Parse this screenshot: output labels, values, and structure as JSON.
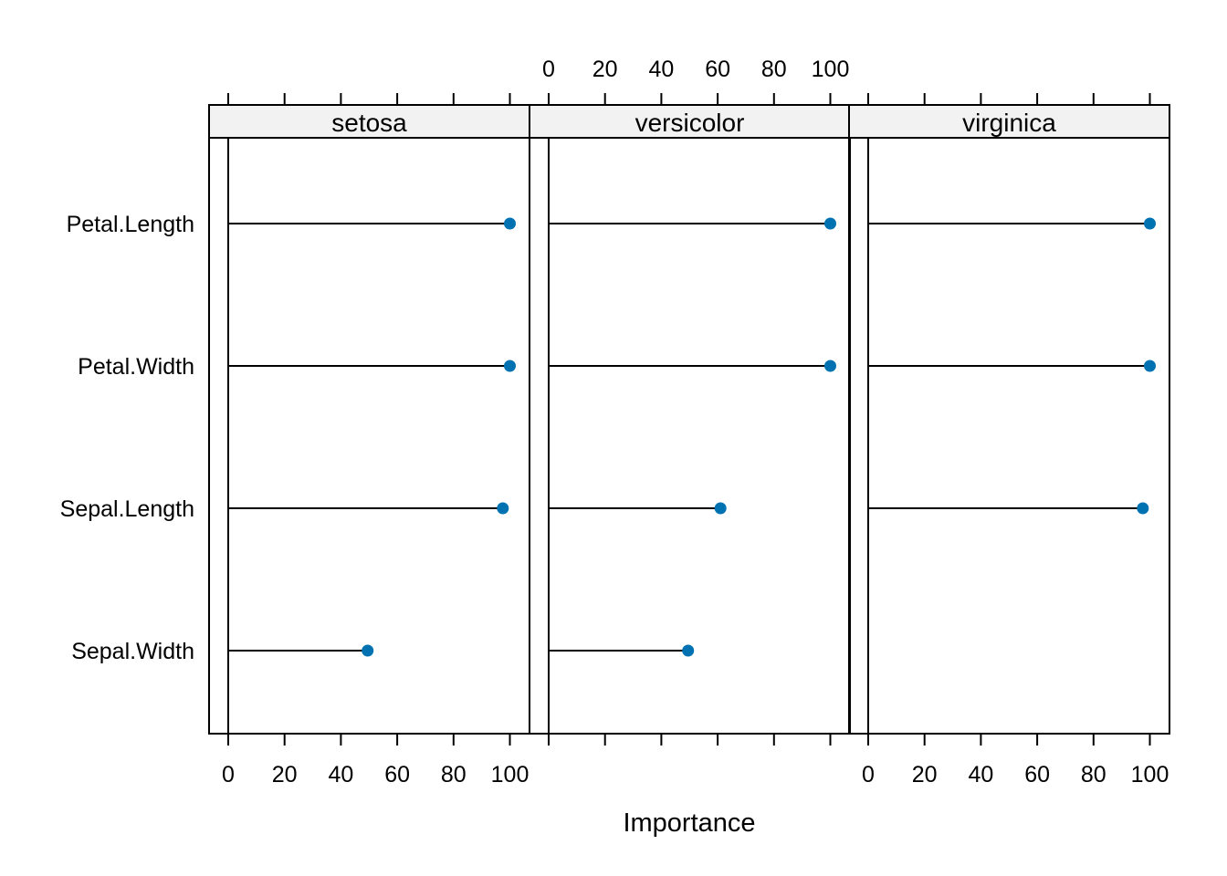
{
  "chart_data": {
    "type": "dot",
    "xlabel": "Importance",
    "ylabel": "",
    "xlim": [
      0,
      100
    ],
    "x_ticks": [
      0,
      20,
      40,
      60,
      80,
      100
    ],
    "grid": false,
    "categories": [
      "Petal.Length",
      "Petal.Width",
      "Sepal.Length",
      "Sepal.Width"
    ],
    "panels": [
      {
        "name": "setosa",
        "values": [
          100,
          100,
          97.5,
          49.5
        ]
      },
      {
        "name": "versicolor",
        "values": [
          100,
          100,
          61,
          49.5
        ]
      },
      {
        "name": "virginica",
        "values": [
          100,
          100,
          97.5,
          null
        ]
      }
    ],
    "colors": {
      "point": "#0072B2",
      "strip_background": "#F2F2F2",
      "line": "#000000"
    }
  }
}
